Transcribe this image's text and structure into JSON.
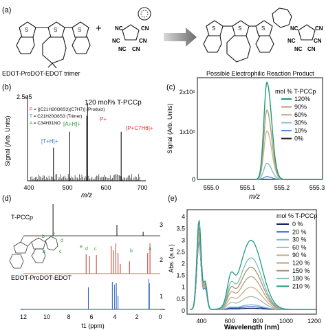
{
  "panel_a": {
    "label": "(a)",
    "plus": "+",
    "trimer_caption": "EDOT-ProDOT-EDOT trimer",
    "product_caption": "Possible Electrophilic Reaction Product",
    "reagent_labels": [
      "NC",
      "CN",
      "NC",
      "CN",
      "NC",
      "CN"
    ],
    "product_reagent_labels": [
      "NC",
      "CN",
      "NC",
      "CN",
      "NC",
      "CN"
    ]
  },
  "panel_b": {
    "label": "(b)",
    "scale": "2.5e5",
    "title": "120 mol% T-PCCp",
    "legend": [
      {
        "key": "P",
        "text": " = [(C21H20O6S3)(C7H7)]  (Product)"
      },
      {
        "key": "T",
        "text": " = C21H20O6S3 (Trimer)"
      },
      {
        "key": "A",
        "text": " = C34H31NO"
      }
    ],
    "legend_plain": [
      "P+ = [(C21H20O6S3)(C7H7)]+ (Product)",
      "T = C21H20O6S3 (Trimer)",
      "A = C34H31NO"
    ],
    "peak_labels": [
      "[T+H]+",
      "[A+H]+",
      "P+",
      "[P+C7H6]+"
    ],
    "ylabel": "Signal (Arb. Units)",
    "xlabel": "m/z",
    "xticks": [
      "400",
      "500",
      "600",
      "700"
    ],
    "peaks": [
      {
        "mz": 465,
        "h": 0.42
      },
      {
        "mz": 508,
        "h": 0.62
      },
      {
        "mz": 553,
        "h": 0.82
      },
      {
        "mz": 555,
        "h": 0.98
      },
      {
        "mz": 644,
        "h": 0.62
      }
    ]
  },
  "panel_c": {
    "label": "(c)",
    "legend_title": "mol % T-PCCp",
    "ylabel": "Signal (Arb. Units)",
    "xlabel": "m/z",
    "yticks": [
      "0",
      "1x10⁵",
      "2x10⁵"
    ],
    "xticks": [
      "555.0",
      "555.1",
      "555.2",
      "555.3"
    ]
  },
  "panel_d": {
    "label": "(d)",
    "xlabel": "f1 (ppm)",
    "xticks": [
      "12",
      "10",
      "8",
      "6",
      "4",
      "2",
      "0"
    ],
    "trace_labels": [
      "T-PCCp",
      "EDOT-ProDOT-EDOT"
    ],
    "trace_numbers": [
      "3",
      "2",
      "1"
    ],
    "peak_letters": [
      "e",
      "d",
      "c",
      "b",
      "a"
    ],
    "structure_letters": [
      "e",
      "d",
      "c",
      "b",
      "a"
    ]
  },
  "panel_e": {
    "label": "(e)",
    "legend_title": "mol % T-PCCp",
    "ylabel": "Abs. (a.u.)",
    "xlabel": "Wavelength (nm)",
    "xticks": [
      "400",
      "600",
      "800",
      "1000",
      "1200"
    ],
    "yticks": [
      "0",
      "0.5",
      "1",
      "1.5",
      "2",
      "2.5",
      "3",
      "3.5",
      "4"
    ]
  },
  "chart_data": [
    {
      "type": "line",
      "title": "",
      "xlabel": "m/z",
      "ylabel": "Signal (Arb. Units)",
      "xlim": [
        554.85,
        555.3
      ],
      "ylim": [
        0,
        220000
      ],
      "legend_position": "top-right",
      "series": [
        {
          "name": "120%",
          "peak_x": 555.1,
          "peak_y": 210000,
          "color": "#1a9a78"
        },
        {
          "name": "90%",
          "peak_x": 555.1,
          "peak_y": 150000,
          "color": "#b89a74"
        },
        {
          "name": "60%",
          "peak_x": 555.1,
          "peak_y": 105000,
          "color": "#c5b496"
        },
        {
          "name": "30%",
          "peak_x": 555.1,
          "peak_y": 35000,
          "color": "#7fc3bd"
        },
        {
          "name": "10%",
          "peak_x": 555.1,
          "peak_y": 6000,
          "color": "#4b8fd6"
        },
        {
          "name": "0%",
          "peak_x": 555.1,
          "peak_y": 500,
          "color": "#222222"
        }
      ]
    },
    {
      "type": "line",
      "title": "",
      "xlabel": "Wavelength (nm)",
      "ylabel": "Abs. (a.u.)",
      "xlim": [
        280,
        1200
      ],
      "ylim": [
        -0.15,
        4.3
      ],
      "legend_position": "top-right",
      "series": [
        {
          "name": "0 %",
          "band_peak": 0.05,
          "uv_peak": 2.9,
          "color": "#0d1f4d"
        },
        {
          "name": "20 %",
          "band_peak": 0.12,
          "uv_peak": 2.9,
          "color": "#2f62b8"
        },
        {
          "name": "30 %",
          "band_peak": 0.2,
          "uv_peak": 3.0,
          "color": "#7ab0e0"
        },
        {
          "name": "60 %",
          "band_peak": 0.55,
          "uv_peak": 3.1,
          "color": "#a8b8a8"
        },
        {
          "name": "90 %",
          "band_peak": 0.95,
          "uv_peak": 3.2,
          "color": "#c9b28a"
        },
        {
          "name": "120 %",
          "band_peak": 1.4,
          "uv_peak": 3.3,
          "color": "#b8a07e"
        },
        {
          "name": "150 %",
          "band_peak": 1.8,
          "uv_peak": 3.5,
          "color": "#a79172"
        },
        {
          "name": "180 %",
          "band_peak": 2.2,
          "uv_peak": 3.8,
          "color": "#7ac0b2"
        },
        {
          "name": "210 %",
          "band_peak": 2.95,
          "uv_peak": 3.8,
          "color": "#1f9a87"
        }
      ]
    }
  ]
}
